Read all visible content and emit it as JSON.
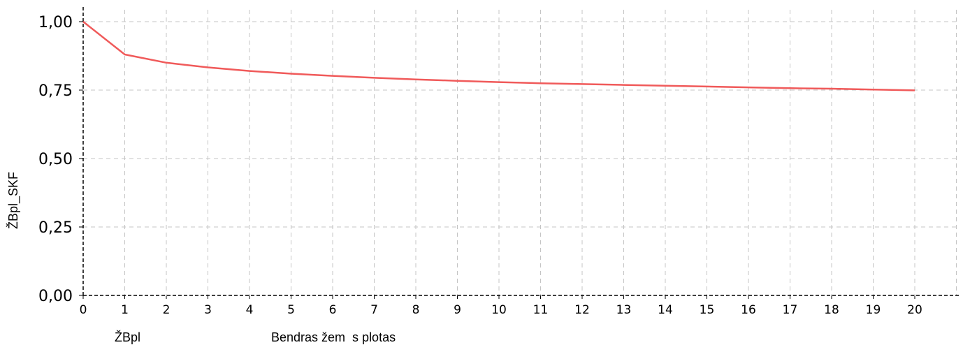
{
  "chart_data": {
    "type": "line",
    "ylabel": "ŽBpl_SKF",
    "xlabel_left": "ŽBpl",
    "xlabel": "Bendras žem  s plotas",
    "xlim": [
      0,
      21
    ],
    "ylim": [
      0,
      1.0
    ],
    "x_ticks": [
      0,
      1,
      2,
      3,
      4,
      5,
      6,
      7,
      8,
      9,
      10,
      11,
      12,
      13,
      14,
      15,
      16,
      17,
      18,
      19,
      20
    ],
    "y_ticks": [
      "0,00",
      "0,25",
      "0,50",
      "0,75",
      "1,00"
    ],
    "y_tick_values": [
      0,
      0.25,
      0.5,
      0.75,
      1.0
    ],
    "grid": true,
    "series": [
      {
        "color": "#f05a5a",
        "x": [
          0,
          1,
          2,
          3,
          4,
          5,
          6,
          7,
          8,
          9,
          10,
          11,
          12,
          13,
          14,
          15,
          16,
          17,
          18,
          19,
          20
        ],
        "values": [
          1.0,
          0.88,
          0.85,
          0.833,
          0.82,
          0.81,
          0.802,
          0.795,
          0.789,
          0.784,
          0.779,
          0.775,
          0.772,
          0.769,
          0.766,
          0.763,
          0.76,
          0.757,
          0.755,
          0.752,
          0.749
        ]
      }
    ]
  }
}
